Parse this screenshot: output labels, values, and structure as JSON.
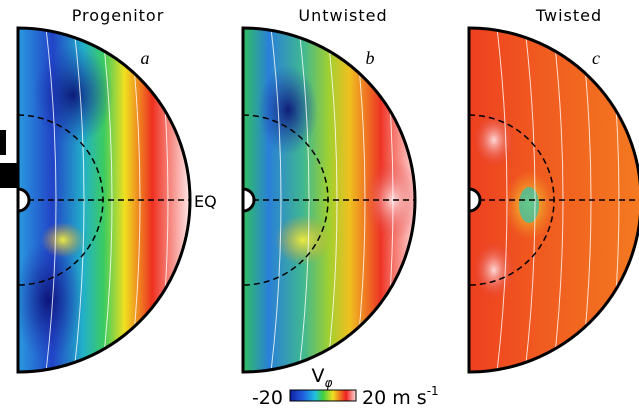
{
  "panels": [
    {
      "title": "Progenitor",
      "letter": "a"
    },
    {
      "title": "Untwisted",
      "letter": "b"
    },
    {
      "title": "Twisted",
      "letter": "c"
    }
  ],
  "eq_label": "EQ",
  "colorbar": {
    "label": "V",
    "label_sub": "φ",
    "min": -20,
    "max": 20,
    "unit": "m s",
    "unit_sup": "-1"
  }
}
